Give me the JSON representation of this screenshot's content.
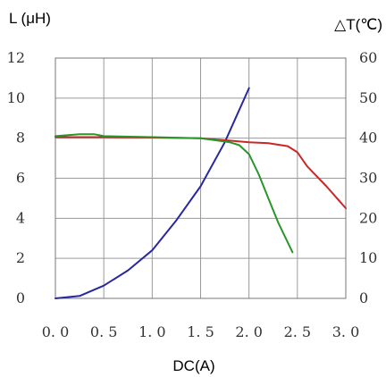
{
  "chart_data": {
    "type": "line",
    "title": "",
    "xlabel": "DC(A)",
    "ylabel_left": "L (μH)",
    "ylabel_right": "△T(℃)",
    "xlim": [
      0,
      3.0
    ],
    "ylim_left": [
      0,
      12
    ],
    "ylim_right": [
      0,
      60
    ],
    "x_ticks": [
      "0. 0",
      "0. 5",
      "1. 0",
      "1. 5",
      "2. 0",
      "2. 5",
      "3. 0"
    ],
    "y_ticks_left": [
      "0",
      "2",
      "4",
      "6",
      "8",
      "10",
      "12"
    ],
    "y_ticks_right": [
      "0",
      "10",
      "20",
      "30",
      "40",
      "50",
      "60"
    ],
    "grid": true,
    "series": [
      {
        "color": "#2828a0",
        "axis": "right",
        "x": [
          0.0,
          0.25,
          0.5,
          0.75,
          1.0,
          1.25,
          1.5,
          1.75,
          2.0
        ],
        "y": [
          0,
          0.6,
          3.2,
          7.0,
          12.0,
          19.5,
          28.0,
          39.0,
          52.5
        ]
      },
      {
        "color": "#c82828",
        "axis": "left",
        "x": [
          0.0,
          0.25,
          0.5,
          1.0,
          1.5,
          1.8,
          2.0,
          2.2,
          2.4,
          2.5,
          2.6,
          2.7,
          2.8,
          3.0
        ],
        "y": [
          8.05,
          8.05,
          8.05,
          8.03,
          8.0,
          7.88,
          7.8,
          7.75,
          7.6,
          7.3,
          6.6,
          6.1,
          5.6,
          4.5
        ]
      },
      {
        "color": "#289628",
        "axis": "left",
        "x": [
          0.0,
          0.25,
          0.4,
          0.5,
          1.0,
          1.5,
          1.8,
          1.9,
          2.0,
          2.1,
          2.2,
          2.3,
          2.45
        ],
        "y": [
          8.1,
          8.2,
          8.2,
          8.1,
          8.05,
          8.0,
          7.8,
          7.65,
          7.2,
          6.2,
          5.0,
          3.8,
          2.3
        ]
      }
    ]
  }
}
